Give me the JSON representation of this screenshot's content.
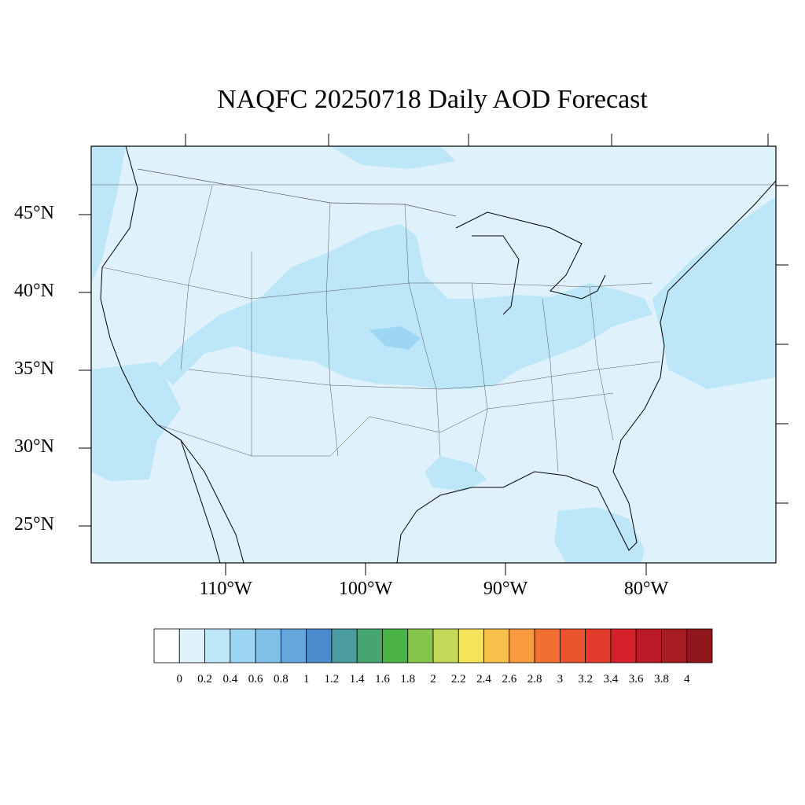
{
  "map": {
    "title": "NAQFC 20250718 Daily AOD Forecast",
    "lat_labels": [
      "45°N",
      "40°N",
      "35°N",
      "30°N",
      "25°N"
    ],
    "lon_labels": [
      "110°W",
      "100°W",
      "90°W",
      "80°W"
    ]
  },
  "colorbar": {
    "labels": [
      "0",
      "0.2",
      "0.4",
      "0.6",
      "0.8",
      "1",
      "1.2",
      "1.4",
      "1.6",
      "1.8",
      "2",
      "2.2",
      "2.4",
      "2.6",
      "2.8",
      "3",
      "3.2",
      "3.4",
      "3.6",
      "3.8",
      "4"
    ],
    "colors": [
      "#ffffff",
      "#dff2fb",
      "#bde6f8",
      "#9dd6f3",
      "#80bfe8",
      "#65a7dd",
      "#4a8ccb",
      "#4a9ca0",
      "#47a56f",
      "#4cb446",
      "#86c54b",
      "#c4d857",
      "#f6e55a",
      "#f8bf4b",
      "#f89b3e",
      "#f16f30",
      "#e9532d",
      "#e03a2b",
      "#d42129",
      "#bb1b26",
      "#a71b23",
      "#90171c"
    ]
  }
}
